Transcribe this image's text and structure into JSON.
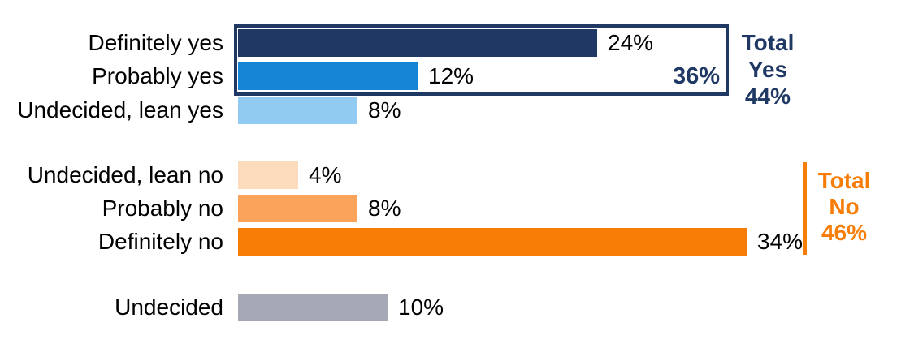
{
  "chart_data": {
    "type": "bar",
    "orientation": "horizontal",
    "title": "",
    "xlabel": "",
    "ylabel": "",
    "axis_visible": false,
    "grid": false,
    "xlim": [
      0,
      40
    ],
    "categories": [
      "Definitely yes",
      "Probably yes",
      "Undecided, lean yes",
      "Undecided, lean no",
      "Probably no",
      "Definitely no",
      "Undecided"
    ],
    "values": [
      24,
      12,
      8,
      4,
      8,
      34,
      10
    ],
    "value_labels": [
      "24%",
      "12%",
      "8%",
      "4%",
      "8%",
      "34%",
      "10%"
    ],
    "bar_colors": [
      "#1F3864",
      "#1585D5",
      "#92CBF1",
      "#FCDCBD",
      "#FBA35A",
      "#F87D07",
      "#A6A9B5"
    ],
    "groups": [
      "yes",
      "yes",
      "yes",
      "no",
      "no",
      "no",
      "undecided"
    ],
    "annotations": {
      "yes_subtotal": "36%",
      "total_yes": {
        "lines": [
          "Total",
          "Yes",
          "44%"
        ],
        "color": "#1F3864"
      },
      "total_no": {
        "lines": [
          "Total",
          "No",
          "46%"
        ],
        "color": "#F87D07"
      }
    }
  },
  "colors": {
    "navy": "#1F3864",
    "blue": "#1585D5",
    "light_blue": "#92CBF1",
    "peach": "#FCDCBD",
    "orange": "#FBA35A",
    "dark_orange": "#F87D07",
    "gray": "#A6A9B5",
    "label_text": "#000000",
    "background": "#FFFFFF"
  }
}
